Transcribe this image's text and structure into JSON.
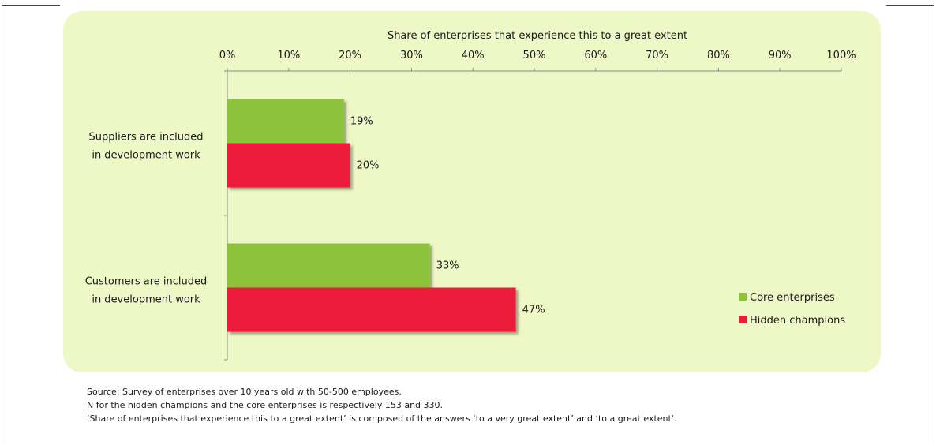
{
  "chart_data": {
    "type": "bar",
    "orientation": "horizontal",
    "title": "Share of enterprises that experience this to a great extent",
    "categories": [
      "Suppliers are included in development work",
      "Customers are included in development work"
    ],
    "category_lines": [
      [
        "Suppliers are included",
        "in development work"
      ],
      [
        "Customers are included",
        "in development work"
      ]
    ],
    "xlim": [
      0,
      100
    ],
    "x_ticks": [
      0,
      10,
      20,
      30,
      40,
      50,
      60,
      70,
      80,
      90,
      100
    ],
    "tick_labels": [
      "0%",
      "10%",
      "20%",
      "30%",
      "40%",
      "50%",
      "60%",
      "70%",
      "80%",
      "90%",
      "100%"
    ],
    "x_axis_position": "top",
    "grid": false,
    "legend_position": "bottom-right",
    "series": [
      {
        "name": "Core enterprises",
        "color": "#8cc33a",
        "values": [
          19,
          33
        ],
        "labels": [
          "19%",
          "33%"
        ]
      },
      {
        "name": "Hidden champions",
        "color": "#ee1b3b",
        "values": [
          20,
          47
        ],
        "labels": [
          "20%",
          "47%"
        ]
      }
    ]
  },
  "notes": [
    "Source: Survey  of enterprises over 10 years old with 50-500 employees.",
    "N for the hidden champions and the core enterprises is respectively 153 and 330.",
    "‘Share of enterprises that experience this to a great extent’ is composed of the answers ‘to a very great extent’ and ‘to a great extent'."
  ]
}
